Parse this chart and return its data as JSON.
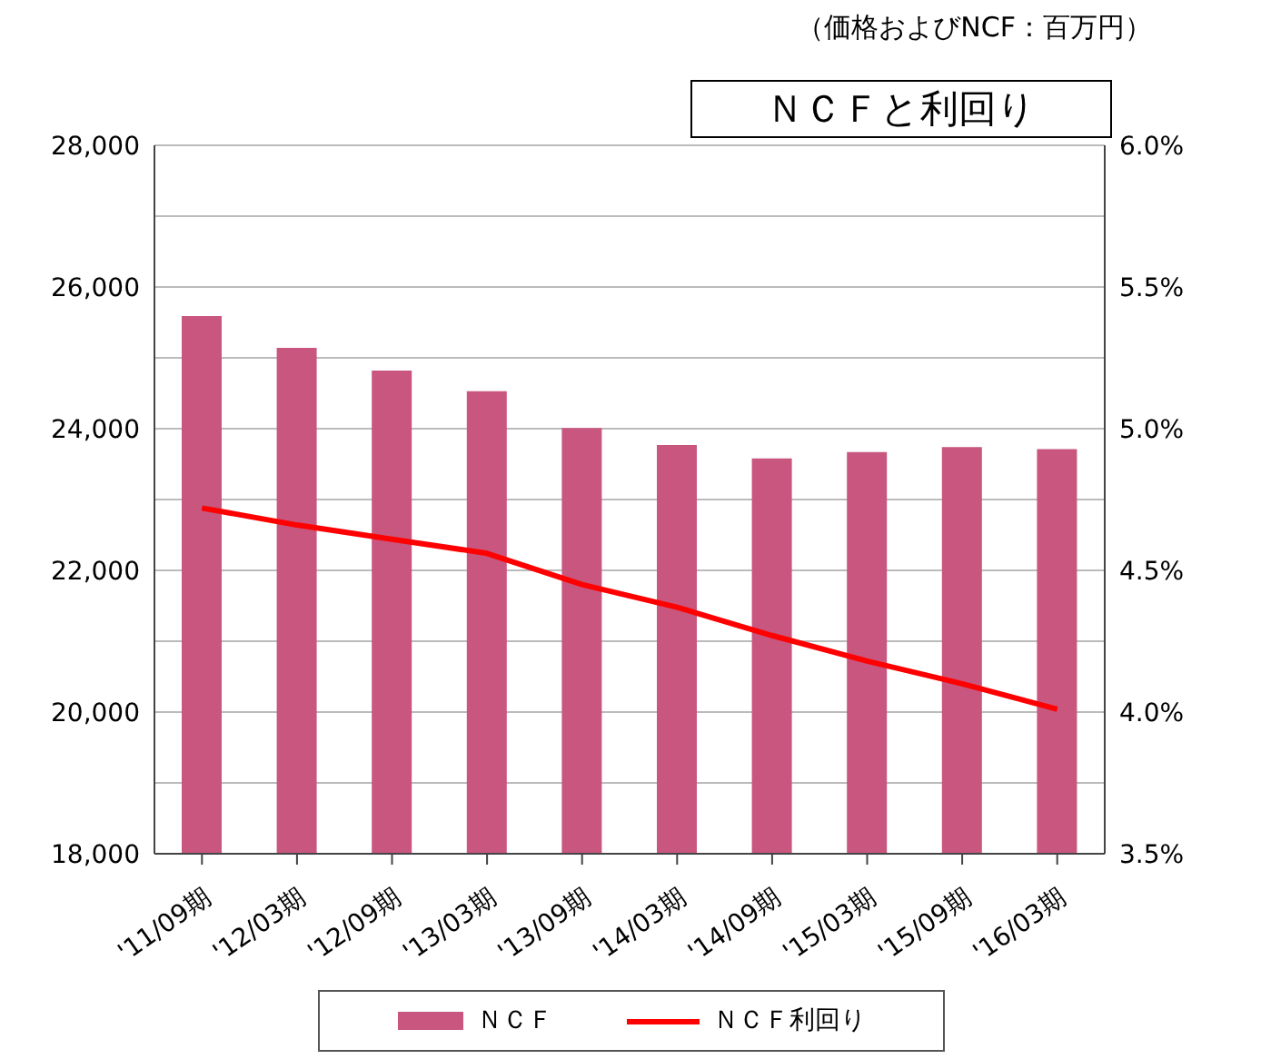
{
  "chart_data": {
    "type": "bar",
    "title": "ＮＣＦと利回り",
    "subtitle": "（価格およびNCF：百万円）",
    "categories": [
      "'11/09期",
      "'12/03期",
      "'12/09期",
      "'13/03期",
      "'13/09期",
      "'14/03期",
      "'14/09期",
      "'15/03期",
      "'15/09期",
      "'16/03期"
    ],
    "series": [
      {
        "name": "ＮＣＦ",
        "color": "#c8567f",
        "values": [
          25590,
          25140,
          24820,
          24530,
          24010,
          23770,
          23580,
          23670,
          23740,
          23710
        ]
      },
      {
        "name": "ＮＣＦ利回り",
        "type": "line",
        "axis": "y2",
        "color": "#ff0000",
        "values": [
          4.72,
          4.66,
          4.61,
          4.56,
          4.45,
          4.37,
          4.27,
          4.18,
          4.1,
          4.01
        ]
      }
    ],
    "ylim": [
      18000,
      28000
    ],
    "yticks": [
      {
        "value": 18000,
        "label": "18,000"
      },
      {
        "value": 19000,
        "label": null
      },
      {
        "value": 20000,
        "label": "20,000"
      },
      {
        "value": 21000,
        "label": null
      },
      {
        "value": 22000,
        "label": "22,000"
      },
      {
        "value": 23000,
        "label": null
      },
      {
        "value": 24000,
        "label": "24,000"
      },
      {
        "value": 25000,
        "label": null
      },
      {
        "value": 26000,
        "label": "26,000"
      },
      {
        "value": 27000,
        "label": null
      },
      {
        "value": 28000,
        "label": "28,000"
      }
    ],
    "y2lim": [
      3.5,
      6.0
    ],
    "y2ticks": [
      {
        "value": 3.5,
        "label": "3.5%"
      },
      {
        "value": 4.0,
        "label": "4.0%"
      },
      {
        "value": 4.5,
        "label": "4.5%"
      },
      {
        "value": 5.0,
        "label": "5.0%"
      },
      {
        "value": 5.5,
        "label": "5.5%"
      },
      {
        "value": 6.0,
        "label": "6.0%"
      }
    ],
    "grid": "y",
    "legend": "bottom",
    "marker": "none",
    "line_style": "solid"
  }
}
